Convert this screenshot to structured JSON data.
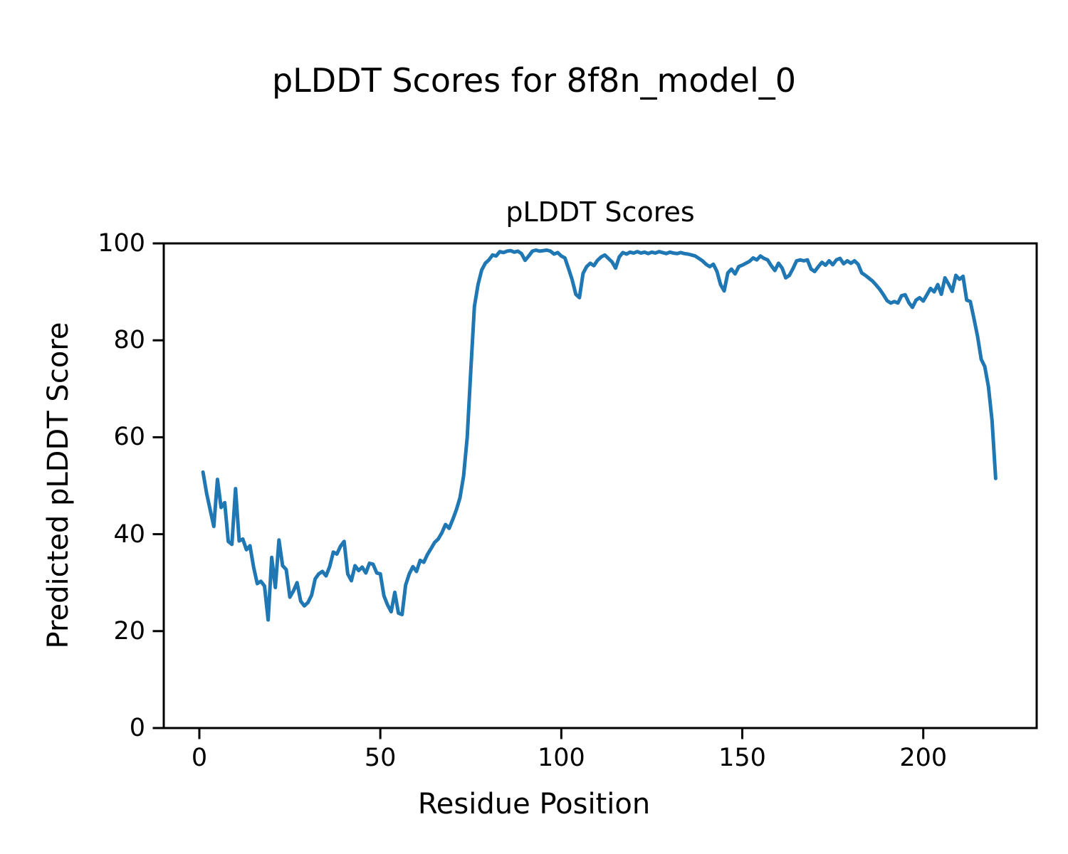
{
  "chart_data": {
    "type": "line",
    "suptitle": "pLDDT Scores for 8f8n_model_0",
    "title": "pLDDT Scores",
    "xlabel": "Residue Position",
    "ylabel": "Predicted pLDDT Score",
    "xlim": [
      -9.83,
      231.33
    ],
    "ylim": [
      0,
      100
    ],
    "xticks": [
      0,
      50,
      100,
      150,
      200
    ],
    "yticks": [
      0,
      20,
      40,
      60,
      80,
      100
    ],
    "grid": false,
    "legend": false,
    "axes_color": "#000000",
    "series": [
      {
        "name": "pLDDT",
        "color": "#1f77b4",
        "line_width": 5,
        "x_start": 1,
        "x_step": 1,
        "y": [
          52.8,
          48.5,
          45.0,
          41.6,
          51.3,
          45.5,
          46.5,
          38.5,
          37.9,
          49.4,
          38.6,
          39.0,
          36.8,
          37.6,
          33.2,
          29.8,
          30.3,
          29.3,
          22.3,
          35.2,
          29.0,
          38.8,
          33.5,
          32.7,
          27.0,
          28.3,
          30.0,
          26.2,
          25.2,
          25.9,
          27.4,
          30.8,
          31.8,
          32.3,
          31.4,
          33.3,
          36.3,
          35.9,
          37.5,
          38.5,
          31.8,
          30.4,
          33.5,
          32.5,
          33.2,
          32.0,
          34.0,
          33.8,
          32.0,
          31.8,
          27.3,
          25.4,
          24.0,
          28.0,
          23.7,
          23.4,
          29.5,
          31.8,
          33.3,
          32.3,
          34.6,
          34.2,
          35.8,
          37.0,
          38.3,
          39.0,
          40.3,
          42.0,
          41.2,
          43.0,
          45.0,
          47.5,
          52.0,
          60.0,
          74.0,
          87.0,
          91.5,
          94.5,
          95.9,
          96.6,
          97.6,
          97.4,
          98.3,
          98.1,
          98.4,
          98.5,
          98.2,
          98.4,
          97.9,
          96.5,
          97.4,
          98.4,
          98.6,
          98.4,
          98.5,
          98.6,
          98.4,
          97.8,
          98.1,
          97.4,
          97.0,
          94.8,
          92.5,
          89.5,
          88.8,
          93.8,
          95.2,
          95.9,
          95.4,
          96.5,
          97.2,
          97.6,
          96.9,
          96.2,
          94.9,
          97.2,
          98.1,
          97.8,
          98.2,
          98.0,
          98.3,
          98.0,
          98.2,
          97.9,
          98.2,
          98.0,
          98.3,
          98.1,
          97.9,
          98.2,
          98.0,
          97.9,
          98.1,
          97.9,
          97.8,
          97.6,
          97.4,
          96.9,
          96.4,
          95.7,
          95.2,
          95.7,
          94.2,
          91.5,
          90.2,
          93.9,
          94.7,
          93.7,
          95.2,
          95.5,
          95.9,
          96.3,
          97.0,
          96.6,
          97.4,
          96.9,
          96.6,
          95.4,
          94.4,
          95.9,
          94.9,
          92.9,
          93.4,
          94.8,
          96.4,
          96.6,
          96.4,
          96.6,
          94.7,
          94.2,
          95.2,
          96.1,
          95.5,
          96.4,
          95.6,
          96.6,
          96.9,
          95.8,
          96.4,
          95.9,
          96.4,
          95.7,
          93.9,
          93.4,
          92.8,
          92.2,
          91.4,
          90.5,
          89.4,
          88.2,
          87.7,
          88.0,
          87.7,
          89.2,
          89.4,
          87.8,
          86.8,
          88.3,
          88.8,
          88.1,
          89.4,
          90.7,
          90.0,
          91.5,
          89.5,
          92.9,
          91.6,
          90.1,
          93.4,
          92.6,
          93.2,
          88.3,
          88.0,
          84.5,
          80.8,
          76.1,
          74.6,
          70.5,
          63.5,
          51.5
        ]
      }
    ]
  }
}
